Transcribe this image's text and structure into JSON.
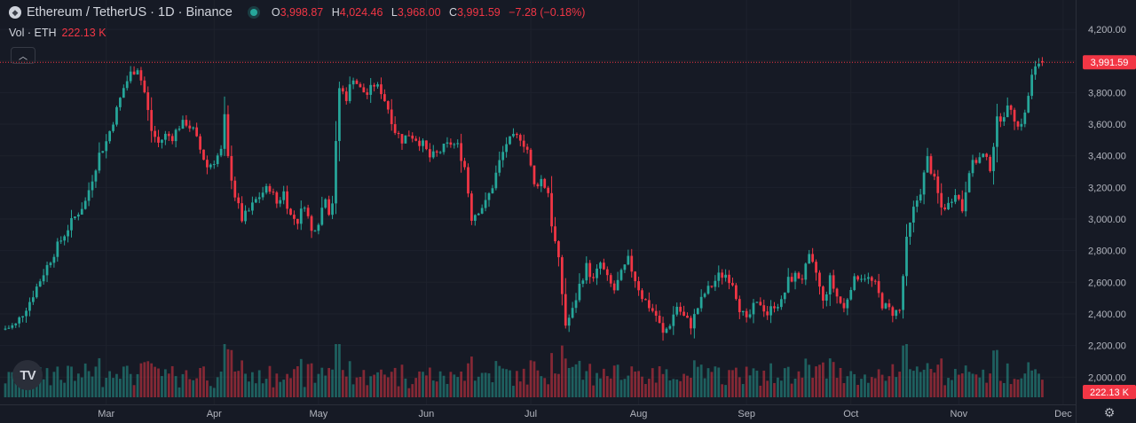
{
  "header": {
    "symbol": "Ethereum / TetherUS · 1D · Binance",
    "ohlc": {
      "o_label": "O",
      "o": "3,998.87",
      "h_label": "H",
      "h": "4,024.46",
      "l_label": "L",
      "l": "3,968.00",
      "c_label": "C",
      "c": "3,991.59",
      "change": "−7.28 (−0.18%)"
    },
    "volume_label": "Vol · ETH",
    "volume_value": "222.13 K"
  },
  "price_badge": "3,991.59",
  "volume_badge": "222.13 K",
  "colors": {
    "up": "#26a69a",
    "down": "#f23645",
    "background": "#161a25",
    "badge": "#f23645"
  },
  "icons": {
    "eth": "ethereum-logo-icon",
    "collapse": "chevron-up-icon",
    "brand": "tradingview-logo-icon",
    "settings": "gear-icon"
  },
  "chart_data": {
    "type": "candlestick",
    "y_ticks": [
      "4,200.00",
      "4,000.00",
      "3,800.00",
      "3,600.00",
      "3,400.00",
      "3,200.00",
      "3,000.00",
      "2,800.00",
      "2,600.00",
      "2,400.00",
      "2,200.00",
      "2,000.00"
    ],
    "y_tick_values": [
      4200,
      4000,
      3800,
      3600,
      3400,
      3200,
      3000,
      2800,
      2600,
      2400,
      2200,
      2000
    ],
    "ylim": [
      1850,
      4380
    ],
    "x_labels": [
      "Mar",
      "Apr",
      "May",
      "Jun",
      "Jul",
      "Aug",
      "Sep",
      "Oct",
      "Nov",
      "Dec"
    ],
    "x_label_days": [
      29,
      60,
      90,
      121,
      151,
      182,
      213,
      243,
      274,
      304
    ],
    "x_range_days": [
      0,
      316
    ],
    "price_keyframes": [
      [
        0,
        2300
      ],
      [
        4,
        2330
      ],
      [
        8,
        2480
      ],
      [
        12,
        2660
      ],
      [
        16,
        2830
      ],
      [
        20,
        2980
      ],
      [
        24,
        3110
      ],
      [
        28,
        3410
      ],
      [
        30,
        3490
      ],
      [
        33,
        3690
      ],
      [
        35,
        3830
      ],
      [
        37,
        3920
      ],
      [
        39,
        3960
      ],
      [
        41,
        3800
      ],
      [
        43,
        3560
      ],
      [
        45,
        3480
      ],
      [
        47,
        3530
      ],
      [
        49,
        3520
      ],
      [
        51,
        3590
      ],
      [
        53,
        3610
      ],
      [
        55,
        3560
      ],
      [
        57,
        3440
      ],
      [
        59,
        3330
      ],
      [
        61,
        3370
      ],
      [
        63,
        3430
      ],
      [
        64,
        3640
      ],
      [
        65,
        3380
      ],
      [
        67,
        3150
      ],
      [
        69,
        3000
      ],
      [
        71,
        3050
      ],
      [
        73,
        3120
      ],
      [
        75,
        3170
      ],
      [
        77,
        3200
      ],
      [
        79,
        3100
      ],
      [
        81,
        3170
      ],
      [
        83,
        3020
      ],
      [
        85,
        2990
      ],
      [
        87,
        3100
      ],
      [
        89,
        2920
      ],
      [
        91,
        2990
      ],
      [
        93,
        3150
      ],
      [
        94,
        3050
      ],
      [
        95,
        3110
      ],
      [
        97,
        3830
      ],
      [
        99,
        3770
      ],
      [
        101,
        3900
      ],
      [
        103,
        3820
      ],
      [
        105,
        3790
      ],
      [
        107,
        3850
      ],
      [
        109,
        3810
      ],
      [
        111,
        3700
      ],
      [
        113,
        3560
      ],
      [
        115,
        3500
      ],
      [
        117,
        3540
      ],
      [
        119,
        3510
      ],
      [
        121,
        3470
      ],
      [
        123,
        3390
      ],
      [
        125,
        3410
      ],
      [
        127,
        3450
      ],
      [
        129,
        3480
      ],
      [
        131,
        3460
      ],
      [
        133,
        3330
      ],
      [
        135,
        3010
      ],
      [
        137,
        3060
      ],
      [
        139,
        3100
      ],
      [
        141,
        3210
      ],
      [
        143,
        3360
      ],
      [
        145,
        3480
      ],
      [
        147,
        3510
      ],
      [
        149,
        3520
      ],
      [
        151,
        3440
      ],
      [
        153,
        3210
      ],
      [
        155,
        3250
      ],
      [
        157,
        3170
      ],
      [
        158,
        2970
      ],
      [
        160,
        2730
      ],
      [
        162,
        2330
      ],
      [
        164,
        2420
      ],
      [
        166,
        2580
      ],
      [
        168,
        2700
      ],
      [
        170,
        2610
      ],
      [
        172,
        2720
      ],
      [
        174,
        2620
      ],
      [
        176,
        2550
      ],
      [
        178,
        2650
      ],
      [
        180,
        2740
      ],
      [
        182,
        2620
      ],
      [
        184,
        2510
      ],
      [
        186,
        2450
      ],
      [
        188,
        2390
      ],
      [
        190,
        2270
      ],
      [
        192,
        2340
      ],
      [
        194,
        2450
      ],
      [
        196,
        2380
      ],
      [
        198,
        2330
      ],
      [
        200,
        2440
      ],
      [
        202,
        2530
      ],
      [
        204,
        2580
      ],
      [
        206,
        2640
      ],
      [
        208,
        2650
      ],
      [
        210,
        2600
      ],
      [
        212,
        2440
      ],
      [
        214,
        2350
      ],
      [
        216,
        2440
      ],
      [
        218,
        2470
      ],
      [
        220,
        2400
      ],
      [
        222,
        2460
      ],
      [
        224,
        2470
      ],
      [
        226,
        2610
      ],
      [
        228,
        2640
      ],
      [
        230,
        2630
      ],
      [
        232,
        2750
      ],
      [
        234,
        2660
      ],
      [
        236,
        2470
      ],
      [
        238,
        2620
      ],
      [
        240,
        2510
      ],
      [
        242,
        2430
      ],
      [
        244,
        2580
      ],
      [
        246,
        2640
      ],
      [
        248,
        2640
      ],
      [
        251,
        2580
      ],
      [
        253,
        2460
      ],
      [
        256,
        2410
      ],
      [
        258,
        2420
      ],
      [
        260,
        2860
      ],
      [
        262,
        3060
      ],
      [
        264,
        3180
      ],
      [
        266,
        3380
      ],
      [
        268,
        3240
      ],
      [
        270,
        3070
      ],
      [
        272,
        3090
      ],
      [
        274,
        3180
      ],
      [
        276,
        3060
      ],
      [
        278,
        3320
      ],
      [
        280,
        3370
      ],
      [
        282,
        3400
      ],
      [
        284,
        3330
      ],
      [
        286,
        3620
      ],
      [
        288,
        3670
      ],
      [
        290,
        3710
      ],
      [
        292,
        3580
      ],
      [
        294,
        3660
      ],
      [
        296,
        3900
      ],
      [
        298,
        3991
      ]
    ],
    "last_candle": {
      "open": 3998.87,
      "high": 4024.46,
      "low": 3968.0,
      "close": 3991.59
    },
    "volume_last": "222.13 K"
  }
}
